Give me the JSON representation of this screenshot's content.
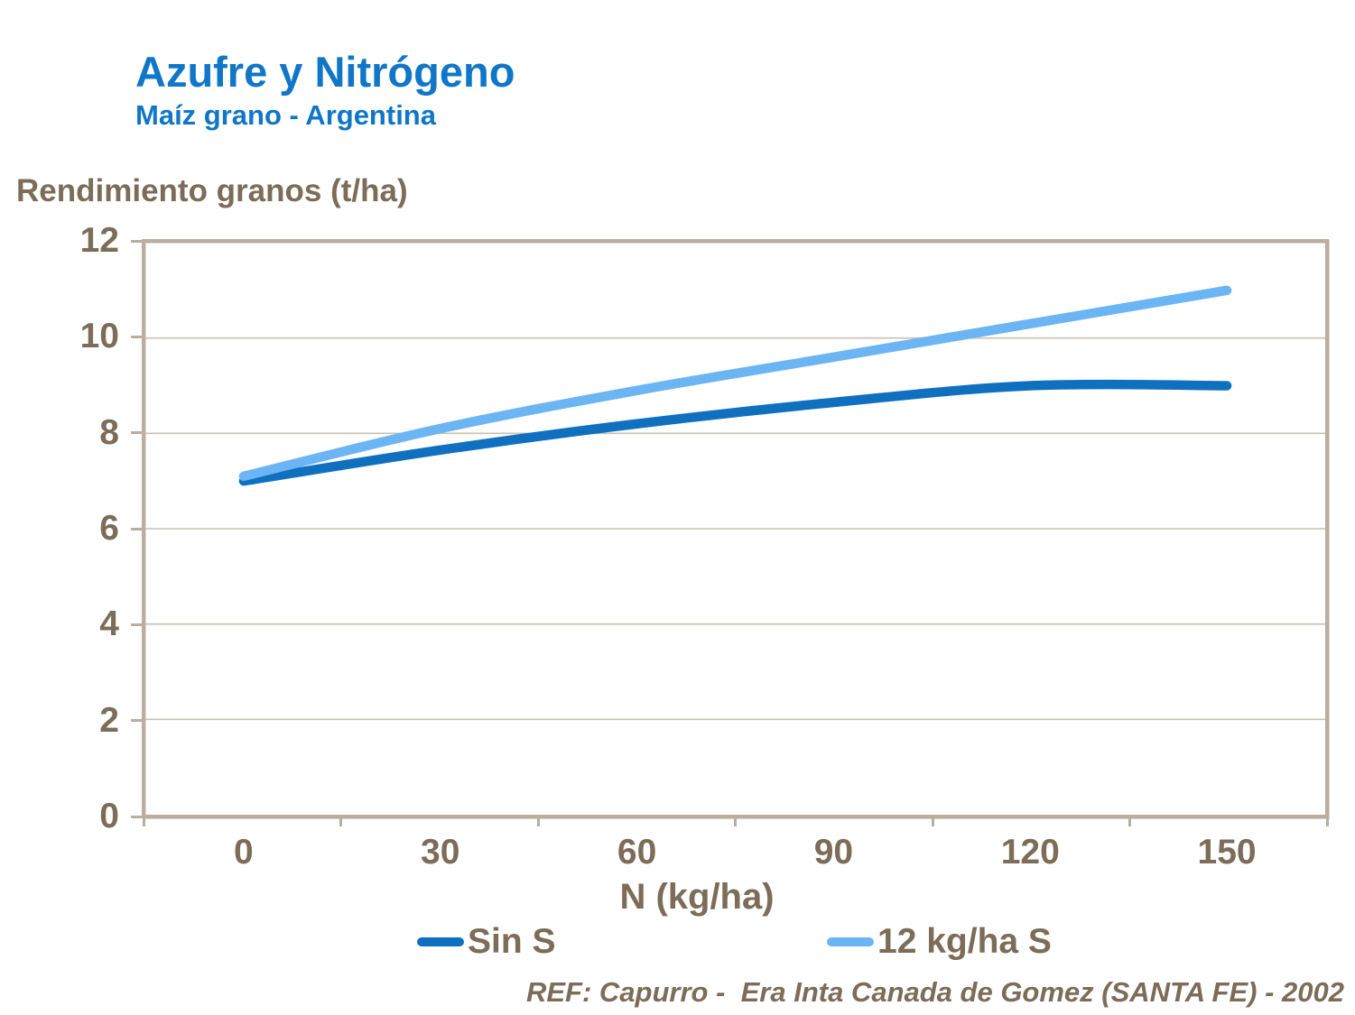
{
  "header": {
    "title": "Azufre y Nitrógeno",
    "subtitle": "Maíz grano - Argentina"
  },
  "chart": {
    "y_axis_title": "Rendimiento granos (t/ha)",
    "x_axis_title": "N (kg/ha)"
  },
  "chart_data": {
    "type": "line",
    "title": "Azufre y Nitrógeno",
    "subtitle": "Maíz grano - Argentina",
    "xlabel": "N (kg/ha)",
    "ylabel": "Rendimiento granos (t/ha)",
    "categories": [
      0,
      30,
      60,
      90,
      120,
      150
    ],
    "series": [
      {
        "name": "Sin S",
        "color": "#1070C0",
        "values": [
          7.0,
          7.65,
          8.2,
          8.65,
          9.0,
          9.0
        ]
      },
      {
        "name": "12 kg/ha S",
        "color": "#6CB5F4",
        "values": [
          7.1,
          8.1,
          8.9,
          9.6,
          10.3,
          11.0
        ]
      }
    ],
    "ylim": [
      0,
      12
    ],
    "y_tick_step": 2,
    "grid": "horizontal-only",
    "legend_position": "bottom"
  },
  "legend": {
    "items": [
      {
        "label": "Sin S",
        "color": "#1070C0"
      },
      {
        "label": "12 kg/ha S",
        "color": "#6CB5F4"
      }
    ]
  },
  "footer": {
    "reference": "REF: Capurro -  Era Inta Canada de Gomez (SANTA FE) - 2002"
  },
  "colors": {
    "title_blue": "#0F76C8",
    "axis_text": "#7C6C58",
    "plot_border": "#B9AEA0",
    "gridline": "#C9C0B2",
    "series_dark_blue": "#1070C0",
    "series_light_blue": "#6CB5F4"
  }
}
